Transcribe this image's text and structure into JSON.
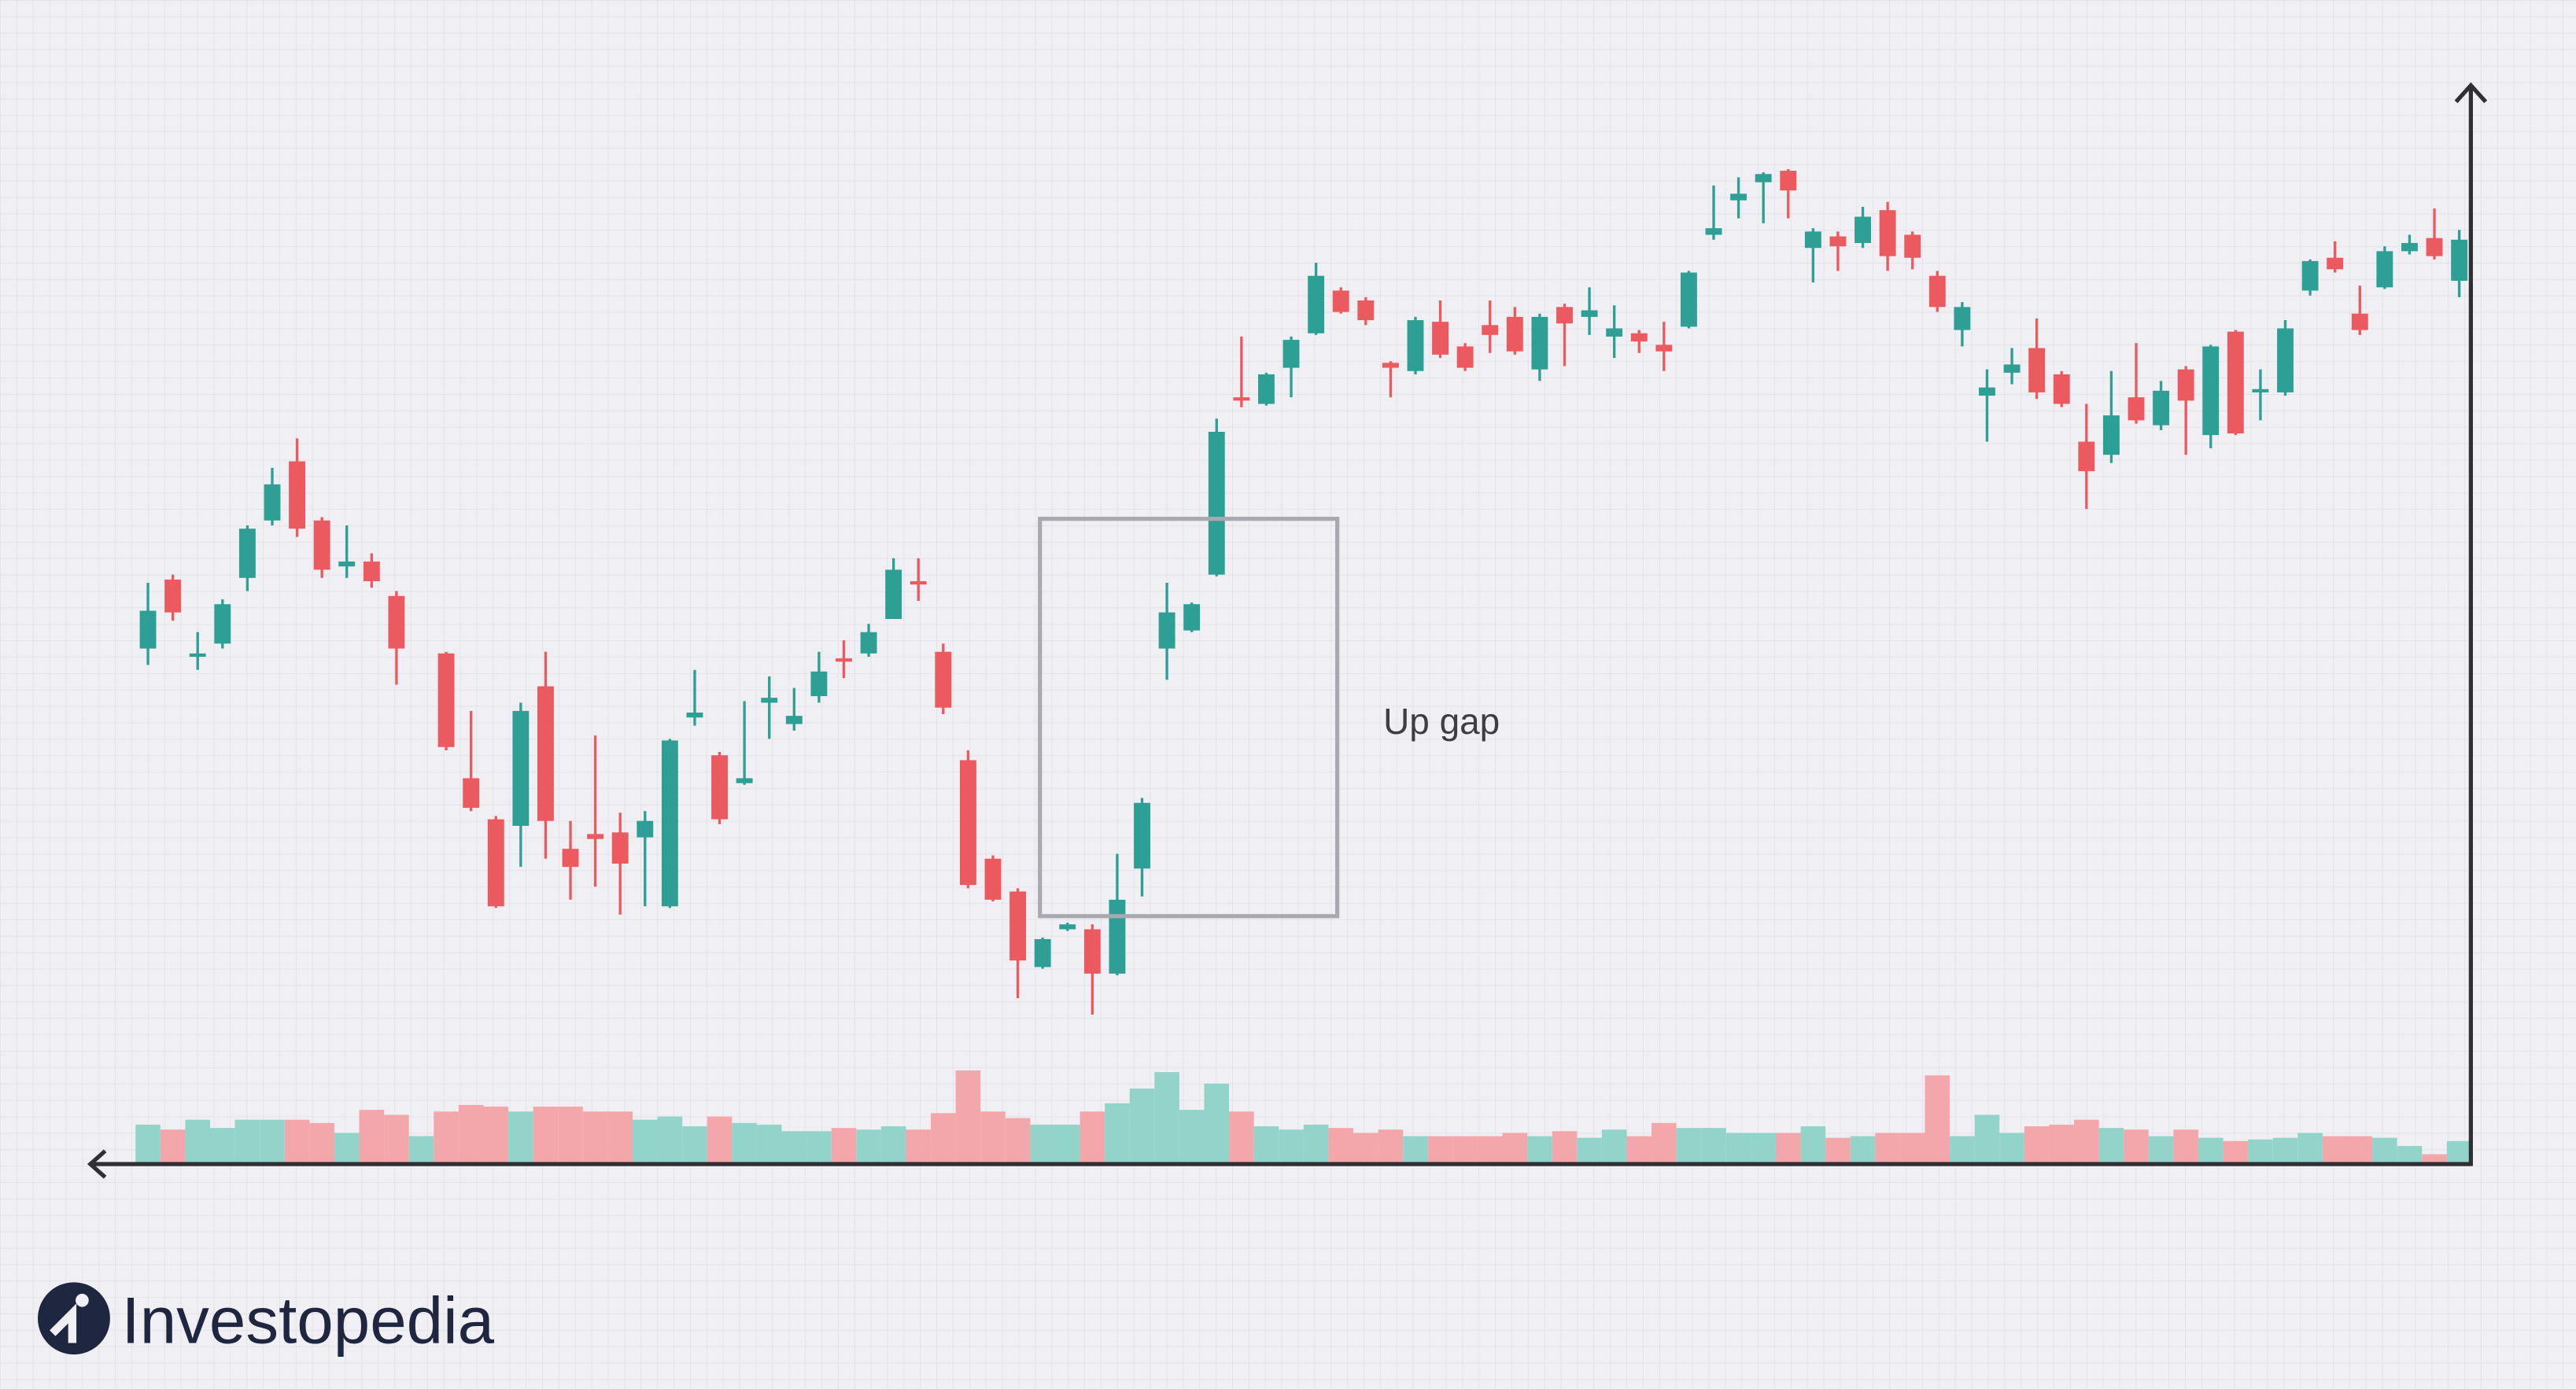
{
  "chart_data": {
    "type": "candlestick",
    "categories": [
      null,
      null,
      null,
      null,
      null,
      null,
      null,
      null,
      null,
      null,
      null,
      null,
      null,
      null,
      null,
      null,
      null,
      null,
      null,
      null,
      null,
      null,
      null,
      null,
      null,
      null,
      null,
      null,
      null,
      null,
      null,
      null,
      null,
      null,
      null,
      null,
      null,
      null,
      null,
      null,
      null,
      null,
      null,
      null,
      null,
      null,
      null,
      null,
      null,
      null,
      null,
      null,
      null,
      null,
      null,
      null,
      null,
      null,
      null,
      null,
      null,
      null,
      null,
      null,
      null,
      null,
      null,
      null,
      null,
      null,
      null,
      null,
      null,
      null,
      null,
      null,
      null,
      null,
      null,
      null,
      null,
      null,
      null,
      null,
      null,
      null,
      null,
      null,
      null,
      null,
      null,
      null,
      null,
      null
    ],
    "open": [
      314,
      356,
      309,
      317,
      357,
      392,
      428,
      392,
      364,
      367,
      346,
      null,
      311,
      235,
      210,
      206,
      291,
      192,
      201,
      202,
      199,
      157,
      272,
      249,
      232,
      281,
      268,
      285,
      308,
      311,
      332,
      355,
      312,
      246,
      186,
      166,
      120,
      143,
      143,
      116,
      180,
      314,
      325,
      359,
      467,
      463,
      485,
      506,
      532,
      526,
      488,
      483,
      513,
      498,
      511,
      516,
      484,
      522,
      516,
      504,
      506,
      499,
      510,
      566,
      587,
      598,
      605,
      558,
      565,
      561,
      581,
      566,
      541,
      508,
      468,
      482,
      497,
      481,
      440,
      432,
      467,
      450,
      484,
      444,
      507,
      470,
      470,
      532,
      552,
      518,
      534,
      556,
      564,
      538
    ],
    "high": [
      354,
      359,
      324,
      344,
      389,
      424,
      442,
      394,
      389,
      372,
      349,
      null,
      312,
      276,
      212,
      281,
      312,
      209,
      261,
      214,
      215,
      259,
      301,
      251,
      282,
      297,
      290,
      312,
      319,
      329,
      369,
      369,
      317,
      252,
      188,
      168,
      138,
      147,
      146,
      189,
      223,
      354,
      342,
      454,
      504,
      482,
      504,
      549,
      534,
      528,
      489,
      516,
      526,
      500,
      526,
      522,
      518,
      524,
      534,
      523,
      508,
      513,
      544,
      596,
      601,
      604,
      606,
      570,
      568,
      583,
      586,
      568,
      544,
      525,
      484,
      497,
      515,
      483,
      463,
      483,
      500,
      477,
      486,
      499,
      508,
      484,
      514,
      551,
      562,
      535,
      559,
      566,
      582,
      569
    ],
    "low": [
      304,
      331,
      301,
      314,
      349,
      389,
      382,
      357,
      357,
      351,
      292,
      null,
      252,
      215,
      156,
      181,
      186,
      161,
      169,
      152,
      157,
      156,
      267,
      207,
      231,
      259,
      264,
      281,
      296,
      309,
      332,
      343,
      274,
      168,
      160,
      101,
      119,
      142,
      91,
      115,
      163,
      295,
      324,
      358,
      461,
      462,
      467,
      505,
      518,
      511,
      467,
      481,
      491,
      483,
      494,
      493,
      477,
      486,
      505,
      491,
      494,
      483,
      509,
      563,
      576,
      573,
      576,
      537,
      544,
      558,
      544,
      545,
      519,
      498,
      440,
      475,
      466,
      461,
      399,
      427,
      451,
      447,
      432,
      436,
      444,
      453,
      468,
      529,
      543,
      505,
      533,
      554,
      551,
      528
    ],
    "close": [
      337,
      336,
      311,
      341,
      387,
      414,
      387,
      362,
      367,
      355,
      314,
      null,
      254,
      217,
      157,
      276,
      209,
      181,
      198,
      183,
      209,
      258,
      275,
      210,
      235,
      284,
      273,
      300,
      306,
      324,
      362,
      353,
      278,
      170,
      161,
      124,
      137,
      146,
      116,
      161,
      220,
      336,
      341,
      446,
      465,
      481,
      502,
      541,
      519,
      514,
      485,
      514,
      493,
      485,
      505,
      495,
      516,
      512,
      520,
      509,
      501,
      495,
      543,
      570,
      591,
      603,
      593,
      568,
      559,
      577,
      553,
      552,
      522,
      522,
      473,
      487,
      470,
      463,
      422,
      456,
      453,
      471,
      465,
      498,
      445,
      472,
      509,
      550,
      545,
      508,
      556,
      561,
      553,
      563
    ],
    "up_color": "#2d9f94",
    "down_color": "#ea5a5e",
    "volume": {
      "values": [
        24,
        21,
        27,
        22,
        27,
        27,
        27,
        25,
        19,
        33,
        30,
        17,
        32,
        36,
        35,
        32,
        35,
        35,
        32,
        32,
        27,
        29,
        23,
        29,
        25,
        24,
        20,
        20,
        22,
        21,
        23,
        21,
        31,
        57,
        32,
        28,
        24,
        24,
        32,
        37,
        46,
        56,
        33,
        49,
        32,
        23,
        21,
        24,
        22,
        19,
        21,
        17,
        17,
        17,
        17,
        19,
        17,
        20,
        16,
        21,
        17,
        25,
        22,
        22,
        19,
        19,
        19,
        23,
        16,
        17,
        19,
        19,
        54,
        17,
        30,
        19,
        23,
        24,
        27,
        22,
        21,
        17,
        21,
        16,
        14,
        15,
        16,
        19,
        17,
        17,
        16,
        11,
        6,
        14
      ],
      "colors": [
        "#93d4ca",
        "#f4a7ab",
        "#93d4ca",
        "#93d4ca",
        "#93d4ca",
        "#93d4ca",
        "#f4a7ab",
        "#f4a7ab",
        "#93d4ca",
        "#f4a7ab",
        "#f4a7ab",
        "#93d4ca",
        "#f4a7ab",
        "#f4a7ab",
        "#f4a7ab",
        "#93d4ca",
        "#f4a7ab",
        "#f4a7ab",
        "#f4a7ab",
        "#f4a7ab",
        "#93d4ca",
        "#93d4ca",
        "#93d4ca",
        "#f4a7ab",
        "#93d4ca",
        "#93d4ca",
        "#93d4ca",
        "#93d4ca",
        "#f4a7ab",
        "#93d4ca",
        "#93d4ca",
        "#f4a7ab",
        "#f4a7ab",
        "#f4a7ab",
        "#f4a7ab",
        "#f4a7ab",
        "#93d4ca",
        "#93d4ca",
        "#f4a7ab",
        "#93d4ca",
        "#93d4ca",
        "#93d4ca",
        "#93d4ca",
        "#93d4ca",
        "#f4a7ab",
        "#93d4ca",
        "#93d4ca",
        "#93d4ca",
        "#f4a7ab",
        "#f4a7ab",
        "#f4a7ab",
        "#93d4ca",
        "#f4a7ab",
        "#f4a7ab",
        "#f4a7ab",
        "#f4a7ab",
        "#93d4ca",
        "#f4a7ab",
        "#93d4ca",
        "#93d4ca",
        "#f4a7ab",
        "#f4a7ab",
        "#93d4ca",
        "#93d4ca",
        "#93d4ca",
        "#93d4ca",
        "#f4a7ab",
        "#93d4ca",
        "#f4a7ab",
        "#93d4ca",
        "#f4a7ab",
        "#f4a7ab",
        "#f4a7ab",
        "#93d4ca",
        "#93d4ca",
        "#93d4ca",
        "#f4a7ab",
        "#f4a7ab",
        "#f4a7ab",
        "#93d4ca",
        "#f4a7ab",
        "#93d4ca",
        "#f4a7ab",
        "#93d4ca",
        "#f4a7ab",
        "#93d4ca",
        "#93d4ca",
        "#93d4ca",
        "#f4a7ab",
        "#f4a7ab",
        "#93d4ca",
        "#93d4ca",
        "#f4a7ab",
        "#93d4ca"
      ]
    },
    "ylim": [
      0,
      659
    ],
    "annotation": "Up gap"
  },
  "brand": "Investopedia"
}
